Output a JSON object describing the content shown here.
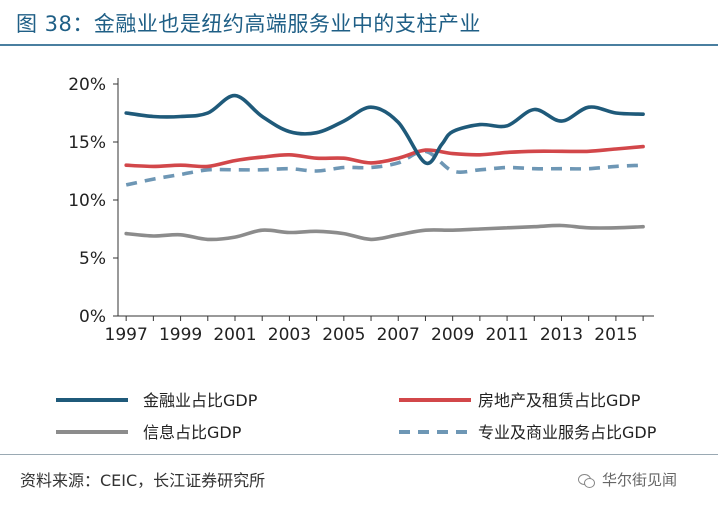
{
  "header": {
    "title": "图 38：金融业也是纽约高端服务业中的支柱产业"
  },
  "footer": {
    "source": "资料来源：CEIC，长江证券研究所",
    "watermark": "华尔街见闻",
    "watermark_icon": "wechat-icon"
  },
  "chart_data": {
    "type": "line",
    "title": "",
    "xlabel": "",
    "ylabel": "",
    "ylim": [
      0,
      20
    ],
    "y_ticks": [
      "0%",
      "5%",
      "10%",
      "15%",
      "20%"
    ],
    "x_ticks": [
      1997,
      1999,
      2001,
      2003,
      2005,
      2007,
      2009,
      2011,
      2013,
      2015
    ],
    "legend_placement": "bottom, two columns",
    "grid": false,
    "series": [
      {
        "name": "金融业占比GDP",
        "color": "#1f5a7a",
        "dash": "solid",
        "points": [
          [
            1997,
            17.5
          ],
          [
            1998,
            17.2
          ],
          [
            1999,
            17.2
          ],
          [
            2000,
            17.5
          ],
          [
            2001,
            19.0
          ],
          [
            2002,
            17.2
          ],
          [
            2003,
            15.9
          ],
          [
            2004,
            15.8
          ],
          [
            2005,
            16.8
          ],
          [
            2006,
            18.0
          ],
          [
            2007,
            16.7
          ],
          [
            2008,
            13.2
          ],
          [
            2008.6,
            14.8
          ],
          [
            2009,
            15.9
          ],
          [
            2010,
            16.5
          ],
          [
            2011,
            16.4
          ],
          [
            2012,
            17.8
          ],
          [
            2013,
            16.8
          ],
          [
            2014,
            18.0
          ],
          [
            2015,
            17.5
          ],
          [
            2016,
            17.4
          ]
        ]
      },
      {
        "name": "房地产及租赁占比GDP",
        "color": "#d2474a",
        "dash": "solid",
        "points": [
          [
            1997,
            13.0
          ],
          [
            1998,
            12.9
          ],
          [
            1999,
            13.0
          ],
          [
            2000,
            12.9
          ],
          [
            2001,
            13.4
          ],
          [
            2002,
            13.7
          ],
          [
            2003,
            13.9
          ],
          [
            2004,
            13.6
          ],
          [
            2005,
            13.6
          ],
          [
            2006,
            13.2
          ],
          [
            2007,
            13.6
          ],
          [
            2008,
            14.3
          ],
          [
            2009,
            14.0
          ],
          [
            2010,
            13.9
          ],
          [
            2011,
            14.1
          ],
          [
            2012,
            14.2
          ],
          [
            2013,
            14.2
          ],
          [
            2014,
            14.2
          ],
          [
            2015,
            14.4
          ],
          [
            2016,
            14.6
          ]
        ]
      },
      {
        "name": "信息占比GDP",
        "color": "#8c8c8c",
        "dash": "solid",
        "points": [
          [
            1997,
            7.1
          ],
          [
            1998,
            6.9
          ],
          [
            1999,
            7.0
          ],
          [
            2000,
            6.6
          ],
          [
            2001,
            6.8
          ],
          [
            2002,
            7.4
          ],
          [
            2003,
            7.2
          ],
          [
            2004,
            7.3
          ],
          [
            2005,
            7.1
          ],
          [
            2006,
            6.6
          ],
          [
            2007,
            7.0
          ],
          [
            2008,
            7.4
          ],
          [
            2009,
            7.4
          ],
          [
            2010,
            7.5
          ],
          [
            2011,
            7.6
          ],
          [
            2012,
            7.7
          ],
          [
            2013,
            7.8
          ],
          [
            2014,
            7.6
          ],
          [
            2015,
            7.6
          ],
          [
            2016,
            7.7
          ]
        ]
      },
      {
        "name": "专业及商业服务占比GDP",
        "color": "#6e97b5",
        "dash": "dashed",
        "points": [
          [
            1997,
            11.3
          ],
          [
            1998,
            11.8
          ],
          [
            1999,
            12.2
          ],
          [
            2000,
            12.6
          ],
          [
            2001,
            12.6
          ],
          [
            2002,
            12.6
          ],
          [
            2003,
            12.7
          ],
          [
            2004,
            12.5
          ],
          [
            2005,
            12.8
          ],
          [
            2006,
            12.8
          ],
          [
            2007,
            13.2
          ],
          [
            2008,
            14.2
          ],
          [
            2009,
            12.5
          ],
          [
            2010,
            12.6
          ],
          [
            2011,
            12.8
          ],
          [
            2012,
            12.7
          ],
          [
            2013,
            12.7
          ],
          [
            2014,
            12.7
          ],
          [
            2015,
            12.9
          ],
          [
            2016,
            13.0
          ]
        ]
      }
    ]
  }
}
